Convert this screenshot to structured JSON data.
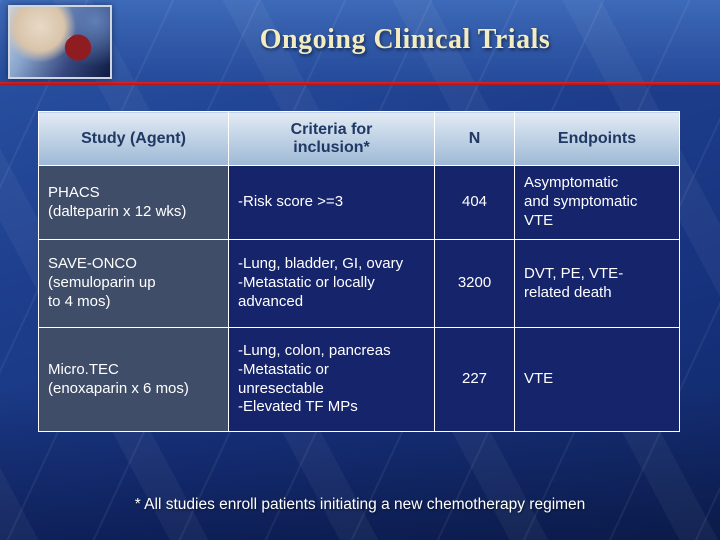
{
  "slide": {
    "title": "Ongoing Clinical Trials",
    "footnote": "* All studies enroll patients initiating a new chemotherapy regimen"
  },
  "table": {
    "headers": [
      "Study (Agent)",
      "Criteria for\ninclusion*",
      "N",
      "Endpoints"
    ],
    "rows": [
      {
        "study": "PHACS\n(dalteparin x 12 wks)",
        "criteria": "-Risk score >=3",
        "n": "404",
        "endpoints": "Asymptomatic\nand symptomatic\nVTE"
      },
      {
        "study": "SAVE-ONCO\n(semuloparin up\nto 4 mos)",
        "criteria": "-Lung, bladder, GI, ovary\n-Metastatic or locally\nadvanced",
        "n": "3200",
        "endpoints": "DVT, PE, VTE-\nrelated death"
      },
      {
        "study": "Micro.TEC\n(enoxaparin x 6 mos)",
        "criteria": "-Lung, colon, pancreas\n-Metastatic or\nunresectable\n-Elevated TF MPs",
        "n": "227",
        "endpoints": "VTE"
      }
    ]
  },
  "colors": {
    "accent_line": "#c21e25",
    "title_text": "#f3ecc0",
    "header_cell_text": "#1f3864",
    "header_cell_bg": "#bccfe3",
    "study_cell_bg": "#3f4d68",
    "body_cell_bg": "#16246b",
    "body_text": "#ffffff"
  }
}
